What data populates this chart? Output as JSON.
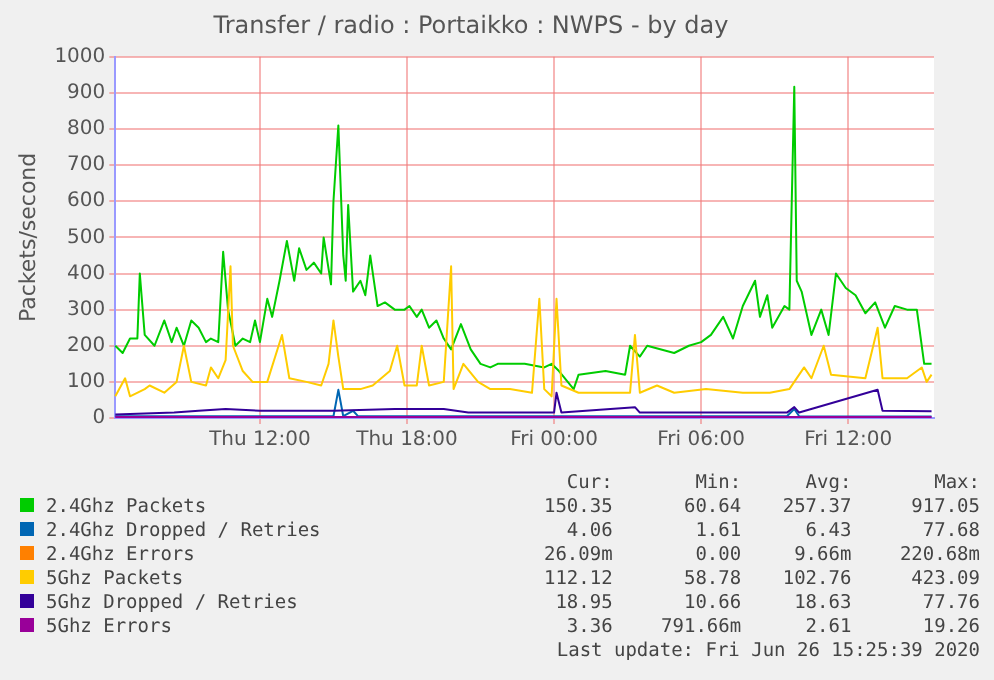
{
  "chart_data": {
    "type": "line",
    "title": "Transfer / radio : Portaikko : NWPS - by day",
    "ylabel": "Packets/second",
    "xlim": [
      "2020-06-25T06:06",
      "2020-06-26T15:30"
    ],
    "xticks": [
      {
        "value": "2020-06-25T12:00",
        "label": "Thu 12:00"
      },
      {
        "value": "2020-06-25T18:00",
        "label": "Thu 18:00"
      },
      {
        "value": "2020-06-26T00:00",
        "label": "Fri 00:00"
      },
      {
        "value": "2020-06-26T06:00",
        "label": "Fri 06:00"
      },
      {
        "value": "2020-06-26T12:00",
        "label": "Fri 12:00"
      }
    ],
    "ylim": [
      0,
      1000
    ],
    "yticks": [
      0,
      100,
      200,
      300,
      400,
      500,
      600,
      700,
      800,
      900,
      1000
    ],
    "grid": true,
    "legend": "bottom",
    "marker": "none",
    "line_style": "solid",
    "series": [
      {
        "name": "2.4Ghz Packets",
        "color": "#00cc00",
        "x": [
          "2020-06-25T06:06",
          "2020-06-25T06:24",
          "2020-06-25T06:42",
          "2020-06-25T07:00",
          "2020-06-25T07:06",
          "2020-06-25T07:18",
          "2020-06-25T07:42",
          "2020-06-25T08:06",
          "2020-06-25T08:24",
          "2020-06-25T08:36",
          "2020-06-25T08:54",
          "2020-06-25T09:12",
          "2020-06-25T09:30",
          "2020-06-25T09:48",
          "2020-06-25T10:00",
          "2020-06-25T10:18",
          "2020-06-25T10:30",
          "2020-06-25T10:42",
          "2020-06-25T11:00",
          "2020-06-25T11:18",
          "2020-06-25T11:36",
          "2020-06-25T11:48",
          "2020-06-25T12:00",
          "2020-06-25T12:18",
          "2020-06-25T12:30",
          "2020-06-25T12:48",
          "2020-06-25T13:06",
          "2020-06-25T13:24",
          "2020-06-25T13:36",
          "2020-06-25T13:54",
          "2020-06-25T14:12",
          "2020-06-25T14:30",
          "2020-06-25T14:36",
          "2020-06-25T14:54",
          "2020-06-25T15:00",
          "2020-06-25T15:12",
          "2020-06-25T15:24",
          "2020-06-25T15:30",
          "2020-06-25T15:36",
          "2020-06-25T15:48",
          "2020-06-25T16:06",
          "2020-06-25T16:18",
          "2020-06-25T16:30",
          "2020-06-25T16:48",
          "2020-06-25T17:06",
          "2020-06-25T17:30",
          "2020-06-25T17:54",
          "2020-06-25T18:06",
          "2020-06-25T18:24",
          "2020-06-25T18:36",
          "2020-06-25T18:54",
          "2020-06-25T19:12",
          "2020-06-25T19:30",
          "2020-06-25T19:48",
          "2020-06-25T20:12",
          "2020-06-25T20:36",
          "2020-06-25T21:00",
          "2020-06-25T21:24",
          "2020-06-25T21:42",
          "2020-06-25T22:48",
          "2020-06-25T23:36",
          "2020-06-25T23:54",
          "2020-06-26T00:12",
          "2020-06-26T00:48",
          "2020-06-26T01:00",
          "2020-06-26T02:06",
          "2020-06-26T02:54",
          "2020-06-26T03:06",
          "2020-06-26T03:30",
          "2020-06-26T03:48",
          "2020-06-26T04:54",
          "2020-06-26T05:30",
          "2020-06-26T06:00",
          "2020-06-26T06:24",
          "2020-06-26T06:54",
          "2020-06-26T07:18",
          "2020-06-26T07:42",
          "2020-06-26T08:12",
          "2020-06-26T08:24",
          "2020-06-26T08:42",
          "2020-06-26T08:54",
          "2020-06-26T09:24",
          "2020-06-26T09:36",
          "2020-06-26T09:48",
          "2020-06-26T09:54",
          "2020-06-26T10:06",
          "2020-06-26T10:30",
          "2020-06-26T10:54",
          "2020-06-26T11:12",
          "2020-06-26T11:30",
          "2020-06-26T11:54",
          "2020-06-26T12:18",
          "2020-06-26T12:42",
          "2020-06-26T13:06",
          "2020-06-26T13:30",
          "2020-06-26T13:54",
          "2020-06-26T14:24",
          "2020-06-26T14:48",
          "2020-06-26T15:06",
          "2020-06-26T15:24"
        ],
        "values": [
          200,
          180,
          220,
          220,
          400,
          230,
          200,
          270,
          210,
          250,
          200,
          270,
          250,
          210,
          220,
          210,
          460,
          300,
          200,
          220,
          210,
          270,
          210,
          330,
          280,
          380,
          490,
          380,
          470,
          410,
          430,
          400,
          500,
          370,
          600,
          810,
          450,
          380,
          590,
          350,
          380,
          340,
          450,
          310,
          320,
          300,
          300,
          310,
          280,
          300,
          250,
          270,
          220,
          190,
          260,
          190,
          150,
          140,
          150,
          150,
          140,
          150,
          130,
          80,
          120,
          130,
          120,
          200,
          170,
          200,
          180,
          200,
          210,
          230,
          280,
          220,
          310,
          380,
          280,
          340,
          250,
          310,
          300,
          917,
          380,
          350,
          230,
          300,
          230,
          400,
          360,
          340,
          290,
          320,
          250,
          310,
          300,
          300,
          150,
          150
        ]
      },
      {
        "name": "2.4Ghz Dropped / Retries",
        "color": "#0066b3",
        "x": [
          "2020-06-25T06:06",
          "2020-06-25T15:00",
          "2020-06-25T15:12",
          "2020-06-25T15:24",
          "2020-06-25T15:48",
          "2020-06-25T16:00",
          "2020-06-26T09:30",
          "2020-06-26T09:48",
          "2020-06-26T10:00",
          "2020-06-26T15:24"
        ],
        "values": [
          5,
          5,
          78,
          5,
          20,
          5,
          5,
          25,
          5,
          4
        ]
      },
      {
        "name": "2.4Ghz Errors",
        "color": "#ff8000"
      },
      {
        "name": "5Ghz Packets",
        "color": "#ffcc00",
        "x": [
          "2020-06-25T06:06",
          "2020-06-25T06:30",
          "2020-06-25T06:42",
          "2020-06-25T07:18",
          "2020-06-25T07:30",
          "2020-06-25T08:06",
          "2020-06-25T08:36",
          "2020-06-25T08:54",
          "2020-06-25T09:12",
          "2020-06-25T09:48",
          "2020-06-25T10:00",
          "2020-06-25T10:18",
          "2020-06-25T10:36",
          "2020-06-25T10:48",
          "2020-06-25T10:54",
          "2020-06-25T11:18",
          "2020-06-25T11:42",
          "2020-06-25T12:18",
          "2020-06-25T12:54",
          "2020-06-25T13:12",
          "2020-06-25T13:54",
          "2020-06-25T14:30",
          "2020-06-25T14:48",
          "2020-06-25T15:00",
          "2020-06-25T15:12",
          "2020-06-25T15:24",
          "2020-06-25T16:06",
          "2020-06-25T16:36",
          "2020-06-25T17:18",
          "2020-06-25T17:36",
          "2020-06-25T17:54",
          "2020-06-25T18:24",
          "2020-06-25T18:36",
          "2020-06-25T18:54",
          "2020-06-25T19:30",
          "2020-06-25T19:48",
          "2020-06-25T19:54",
          "2020-06-25T20:18",
          "2020-06-25T20:54",
          "2020-06-25T21:24",
          "2020-06-25T22:12",
          "2020-06-25T23:06",
          "2020-06-25T23:24",
          "2020-06-25T23:36",
          "2020-06-25T23:54",
          "2020-06-26T00:06",
          "2020-06-26T00:18",
          "2020-06-26T01:00",
          "2020-06-26T02:06",
          "2020-06-26T03:06",
          "2020-06-26T03:18",
          "2020-06-26T03:30",
          "2020-06-26T04:12",
          "2020-06-26T04:54",
          "2020-06-26T06:12",
          "2020-06-26T07:42",
          "2020-06-26T08:48",
          "2020-06-26T09:36",
          "2020-06-26T10:12",
          "2020-06-26T10:30",
          "2020-06-26T11:00",
          "2020-06-26T11:18",
          "2020-06-26T12:42",
          "2020-06-26T13:12",
          "2020-06-26T13:24",
          "2020-06-26T14:24",
          "2020-06-26T15:00",
          "2020-06-26T15:12",
          "2020-06-26T15:24"
        ],
        "values": [
          60,
          110,
          60,
          80,
          90,
          70,
          100,
          200,
          100,
          90,
          140,
          110,
          160,
          420,
          200,
          130,
          100,
          100,
          230,
          110,
          100,
          90,
          150,
          270,
          170,
          80,
          80,
          90,
          130,
          200,
          90,
          90,
          200,
          90,
          100,
          420,
          80,
          150,
          100,
          80,
          80,
          70,
          330,
          80,
          60,
          330,
          90,
          70,
          70,
          70,
          230,
          70,
          90,
          70,
          80,
          70,
          70,
          80,
          140,
          110,
          200,
          120,
          110,
          250,
          110,
          110,
          140,
          100,
          120
        ]
      },
      {
        "name": "5Ghz Dropped / Retries",
        "color": "#330099",
        "x": [
          "2020-06-25T06:06",
          "2020-06-25T08:30",
          "2020-06-25T09:30",
          "2020-06-25T10:36",
          "2020-06-25T12:00",
          "2020-06-25T15:00",
          "2020-06-25T17:30",
          "2020-06-25T19:30",
          "2020-06-25T20:30",
          "2020-06-26T00:00",
          "2020-06-26T00:06",
          "2020-06-26T00:18",
          "2020-06-26T03:18",
          "2020-06-26T03:30",
          "2020-06-26T09:30",
          "2020-06-26T09:48",
          "2020-06-26T10:00",
          "2020-06-26T13:12",
          "2020-06-26T13:24",
          "2020-06-26T15:24"
        ],
        "values": [
          10,
          15,
          20,
          25,
          20,
          20,
          25,
          25,
          15,
          15,
          70,
          15,
          30,
          15,
          15,
          30,
          15,
          78,
          20,
          19
        ]
      },
      {
        "name": "5Ghz Errors",
        "color": "#990099",
        "x": [
          "2020-06-25T06:06",
          "2020-06-26T15:24"
        ],
        "values": [
          3,
          3
        ]
      }
    ],
    "annotations": [
      "Cur:",
      "Min:",
      "Avg:",
      "Max:",
      "150.35",
      "60.64",
      "257.37",
      "917.05",
      "4.06",
      "1.61",
      "6.43",
      "77.68",
      "26.09m",
      "0.00",
      "9.66m",
      "220.68m",
      "112.12",
      "58.78",
      "102.76",
      "423.09",
      "18.95",
      "10.66",
      "18.63",
      "77.76",
      "3.36",
      "791.66m",
      "2.61",
      "19.26",
      "Last update: Fri Jun 26 15:25:39 2020"
    ]
  }
}
